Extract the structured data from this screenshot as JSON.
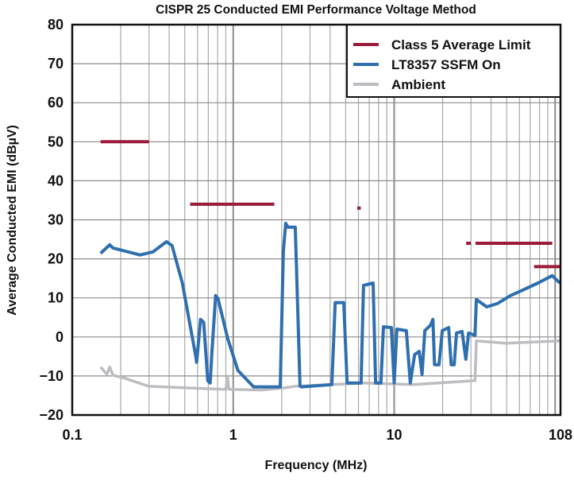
{
  "chart_data": {
    "type": "line",
    "title": "CISPR 25 Conducted EMI Performance Voltage Method",
    "xlabel": "Frequency (MHz)",
    "ylabel": "Average Conducted EMI (dBµV)",
    "xscale": "log",
    "xlim": [
      0.1,
      108
    ],
    "ylim": [
      -20,
      80
    ],
    "x_ticks": [
      "0.1",
      "1",
      "10",
      "108"
    ],
    "y_ticks": [
      "-20",
      "-10",
      "0",
      "10",
      "20",
      "30",
      "40",
      "50",
      "60",
      "70",
      "80"
    ],
    "grid": true,
    "legend_position": "top-right",
    "series": [
      {
        "name": "Class 5 Average Limit",
        "color": "#9b1b3a",
        "segments": [
          {
            "f": [
              0.15,
              0.3
            ],
            "level": 50
          },
          {
            "f": [
              0.54,
              1.8
            ],
            "level": 34
          },
          {
            "f": [
              5.9,
              6.2
            ],
            "level": 33
          },
          {
            "f": [
              28,
              30
            ],
            "level": 24
          },
          {
            "f": [
              32,
              96
            ],
            "level": 24
          },
          {
            "f": [
              74,
              108
            ],
            "level": 18
          }
        ]
      },
      {
        "name": "LT8357 SSFM On",
        "color": "#2f6fb0",
        "points": [
          [
            0.15,
            21.4
          ],
          [
            0.171,
            23.6
          ],
          [
            0.179,
            22.8
          ],
          [
            0.264,
            21
          ],
          [
            0.317,
            21.8
          ],
          [
            0.385,
            24.4
          ],
          [
            0.417,
            23.4
          ],
          [
            0.483,
            13.8
          ],
          [
            0.586,
            -5.1
          ],
          [
            0.593,
            -6.5
          ],
          [
            0.627,
            4.5
          ],
          [
            0.656,
            3.7
          ],
          [
            0.695,
            -11.2
          ],
          [
            0.719,
            -11.8
          ],
          [
            0.735,
            -5
          ],
          [
            0.778,
            10.6
          ],
          [
            0.805,
            9.8
          ],
          [
            0.924,
            -0.4
          ],
          [
            1.07,
            -8.6
          ],
          [
            1.34,
            -12.8
          ],
          [
            1.96,
            -12.8
          ],
          [
            2.05,
            22
          ],
          [
            2.12,
            29.1
          ],
          [
            2.19,
            28.1
          ],
          [
            2.43,
            28.1
          ],
          [
            2.46,
            20.8
          ],
          [
            2.6,
            -12.6
          ],
          [
            2.66,
            -12.8
          ],
          [
            4.1,
            -12.2
          ],
          [
            4.3,
            8.8
          ],
          [
            4.86,
            8.8
          ],
          [
            5.1,
            -11.8
          ],
          [
            6.23,
            -11.8
          ],
          [
            6.45,
            13.2
          ],
          [
            7.4,
            13.8
          ],
          [
            7.67,
            -11.8
          ],
          [
            8.27,
            -11.8
          ],
          [
            8.58,
            2.6
          ],
          [
            9.6,
            2.4
          ],
          [
            10.0,
            -11.8
          ],
          [
            10.4,
            2.0
          ],
          [
            11.9,
            1.6
          ],
          [
            12.6,
            -11.8
          ],
          [
            13.4,
            -4.5
          ],
          [
            14.3,
            -3.7
          ],
          [
            14.9,
            -9.6
          ],
          [
            15.5,
            1.6
          ],
          [
            16.8,
            3.0
          ],
          [
            17.4,
            4.5
          ],
          [
            17.8,
            -7.1
          ],
          [
            19.0,
            -7.1
          ],
          [
            19.9,
            1.6
          ],
          [
            21.8,
            2.4
          ],
          [
            22.6,
            -7.1
          ],
          [
            23.6,
            -7.1
          ],
          [
            24.4,
            1.0
          ],
          [
            26.4,
            1.4
          ],
          [
            27.9,
            -5.7
          ],
          [
            29.0,
            1.0
          ],
          [
            31.8,
            0.4
          ],
          [
            32.4,
            9.6
          ],
          [
            37.6,
            7.7
          ],
          [
            44.0,
            8.6
          ],
          [
            52.8,
            10.6
          ],
          [
            64.4,
            12.2
          ],
          [
            78.2,
            13.8
          ],
          [
            96,
            15.7
          ],
          [
            107,
            13.8
          ]
        ]
      },
      {
        "name": "Ambient",
        "color": "#bdbdc2",
        "points": [
          [
            0.15,
            -7.7
          ],
          [
            0.164,
            -9.6
          ],
          [
            0.171,
            -7.7
          ],
          [
            0.179,
            -9.8
          ],
          [
            0.213,
            -10.6
          ],
          [
            0.296,
            -12.6
          ],
          [
            0.48,
            -13
          ],
          [
            0.85,
            -13.4
          ],
          [
            0.9,
            -13.4
          ],
          [
            0.92,
            -10
          ],
          [
            0.94,
            -13.4
          ],
          [
            1.5,
            -13.6
          ],
          [
            2.12,
            -13
          ],
          [
            2.46,
            -12.6
          ],
          [
            6.6,
            -11.8
          ],
          [
            13.1,
            -12.2
          ],
          [
            31.8,
            -11.2
          ],
          [
            32.4,
            -1.0
          ],
          [
            49,
            -1.6
          ],
          [
            107,
            -1.0
          ]
        ]
      }
    ]
  }
}
